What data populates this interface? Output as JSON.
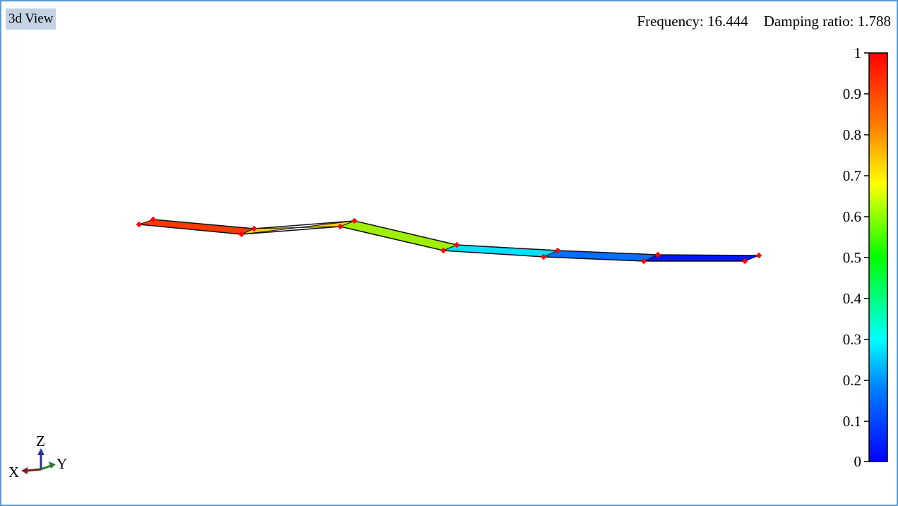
{
  "viewport": {
    "tab_label": "3d View",
    "frequency_label": "Frequency:",
    "frequency_value": "16.444",
    "damping_label": "Damping ratio:",
    "damping_value": "1.788"
  },
  "colorbar": {
    "tick_labels": [
      "1",
      "0.9",
      "0.8",
      "0.7",
      "0.6",
      "0.5",
      "0.4",
      "0.3",
      "0.2",
      "0.1",
      "0"
    ],
    "gradient_colors": [
      "#ff0000",
      "#ff8000",
      "#ffff00",
      "#00ff00",
      "#00ffff",
      "#0080ff",
      "#0000ff"
    ]
  },
  "axes_triad": {
    "x_label": "X",
    "y_label": "Y",
    "z_label": "Z",
    "x_color": "#7a1f1f",
    "y_color": "#2e7d32",
    "z_color": "#283593"
  },
  "mode_shape": {
    "node_color": "#ff0000",
    "segment_colors": [
      "#ff3300",
      "#ffd200",
      "#ffe000",
      "#00ffd8",
      "#0090ff",
      "#0030ff",
      "#0010e0"
    ]
  }
}
